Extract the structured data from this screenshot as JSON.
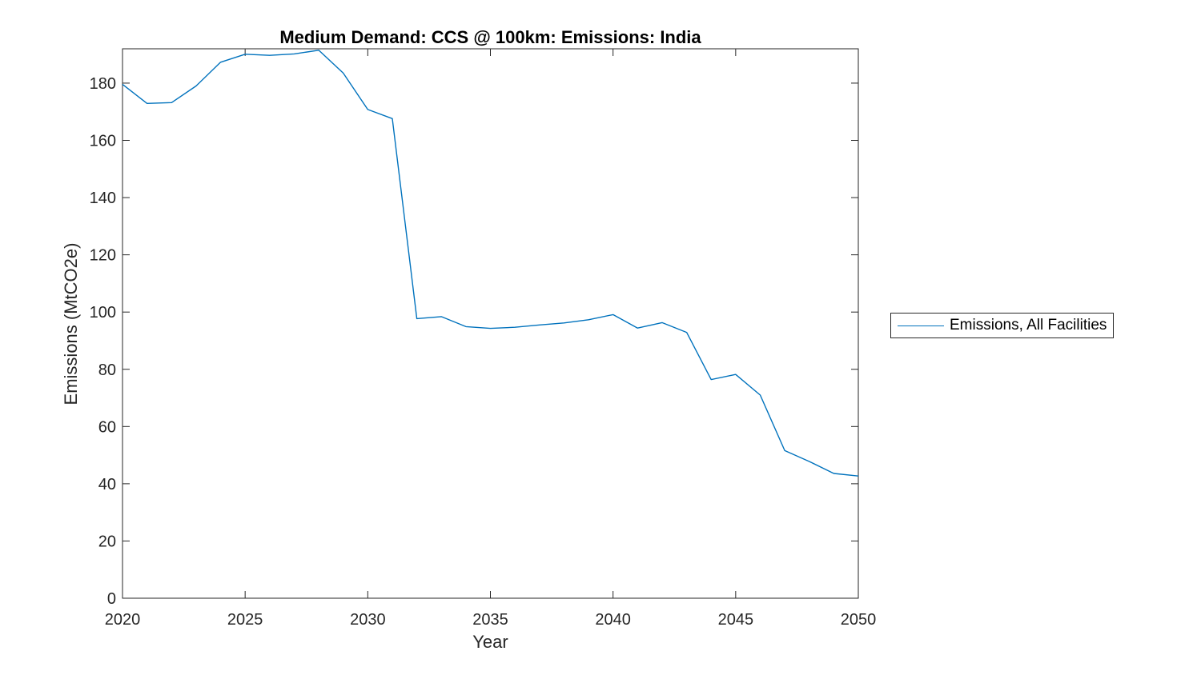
{
  "chart_data": {
    "type": "line",
    "title": "Medium Demand: CCS @ 100km: Emissions: India",
    "xlabel": "Year",
    "ylabel": "Emissions (MtCO2e)",
    "xlim": [
      2020,
      2050
    ],
    "ylim": [
      0,
      192
    ],
    "xticks": [
      2020,
      2025,
      2030,
      2035,
      2040,
      2045,
      2050
    ],
    "yticks": [
      0,
      20,
      40,
      60,
      80,
      100,
      120,
      140,
      160,
      180
    ],
    "grid": false,
    "legend_position": "outside-right",
    "series": [
      {
        "name": "Emissions, All Facilities",
        "color": "#0072BD",
        "x": [
          2020,
          2021,
          2022,
          2023,
          2024,
          2025,
          2026,
          2027,
          2028,
          2029,
          2030,
          2031,
          2032,
          2033,
          2034,
          2035,
          2036,
          2037,
          2038,
          2039,
          2040,
          2041,
          2042,
          2043,
          2044,
          2045,
          2046,
          2047,
          2048,
          2049,
          2050
        ],
        "values": [
          179.6,
          172.9,
          173.2,
          179.0,
          187.3,
          190.1,
          189.7,
          190.2,
          191.5,
          183.5,
          170.8,
          167.6,
          97.7,
          98.4,
          94.9,
          94.3,
          94.7,
          95.5,
          96.2,
          97.3,
          99.1,
          94.4,
          96.3,
          92.9,
          76.4,
          78.2,
          71.0,
          51.6,
          47.8,
          43.6,
          42.7
        ]
      }
    ]
  },
  "colors": {
    "line": "#0072BD",
    "axes": "#262626",
    "title_text": "#000000",
    "background": "#ffffff"
  }
}
